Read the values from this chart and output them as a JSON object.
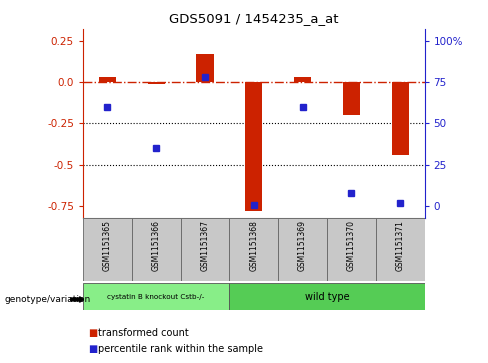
{
  "title": "GDS5091 / 1454235_a_at",
  "samples": [
    "GSM1151365",
    "GSM1151366",
    "GSM1151367",
    "GSM1151368",
    "GSM1151369",
    "GSM1151370",
    "GSM1151371"
  ],
  "red_values": [
    0.03,
    -0.01,
    0.17,
    -0.78,
    0.03,
    -0.2,
    -0.44
  ],
  "blue_values_pct": [
    60,
    35,
    78,
    1,
    60,
    8,
    2
  ],
  "ylim": [
    -0.82,
    0.32
  ],
  "y_ticks_left": [
    0.25,
    0.0,
    -0.25,
    -0.5,
    -0.75
  ],
  "y_ticks_right_pct": [
    100,
    75,
    50,
    25,
    0
  ],
  "hline_y": 0.0,
  "dotted_lines": [
    -0.25,
    -0.5
  ],
  "group1_label": "cystatin B knockout Cstb-/-",
  "group1_samples": 3,
  "group2_label": "wild type",
  "group2_samples": 4,
  "genotype_label": "genotype/variation",
  "legend_red": "transformed count",
  "legend_blue": "percentile rank within the sample",
  "bar_color": "#cc2200",
  "dot_color": "#2222cc",
  "group1_color": "#88ee88",
  "group2_color": "#55cc55",
  "bg_gray": "#c8c8c8",
  "bar_width": 0.35
}
